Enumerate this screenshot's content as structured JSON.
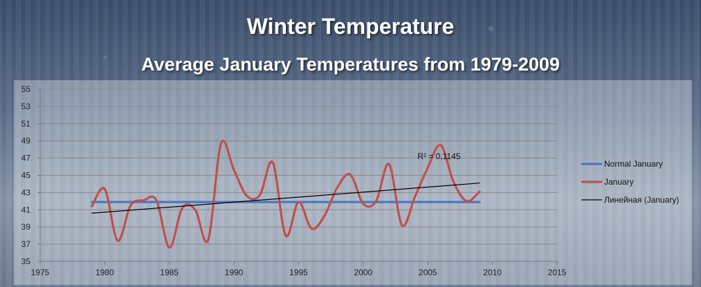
{
  "slide": {
    "title": "Winter Temperature",
    "subtitle": "Average January Temperatures from 1979-2009"
  },
  "chart_data": {
    "type": "line",
    "title": "",
    "xlabel": "",
    "ylabel": "",
    "xlim": [
      1975,
      2015
    ],
    "ylim": [
      35,
      55
    ],
    "x_ticks": [
      "1975",
      "1980",
      "1985",
      "1990",
      "1995",
      "2000",
      "2005",
      "2010",
      "2015"
    ],
    "y_ticks": [
      "35",
      "37",
      "39",
      "41",
      "43",
      "45",
      "47",
      "49",
      "51",
      "53",
      "55"
    ],
    "grid": true,
    "legend_position": "right",
    "series": [
      {
        "name": "Normal January",
        "color": "#4a78c2",
        "x": [
          1979,
          2009
        ],
        "y": [
          41.9,
          41.9
        ]
      },
      {
        "name": "January",
        "color": "#c0504d",
        "smooth": true,
        "x": [
          1979,
          1980,
          1981,
          1982,
          1983,
          1984,
          1985,
          1986,
          1987,
          1988,
          1989,
          1990,
          1991,
          1992,
          1993,
          1994,
          1995,
          1996,
          1997,
          1998,
          1999,
          2000,
          2001,
          2002,
          2003,
          2004,
          2005,
          2006,
          2007,
          2008,
          2009
        ],
        "y": [
          41.4,
          43.4,
          37.4,
          41.5,
          42.1,
          42.1,
          36.6,
          41.2,
          41.0,
          37.5,
          48.7,
          45.6,
          42.6,
          42.7,
          46.5,
          38.0,
          41.9,
          38.8,
          40.3,
          43.6,
          45.1,
          41.7,
          42.0,
          46.3,
          39.2,
          42.5,
          45.9,
          48.5,
          44.2,
          42.0,
          43.1
        ]
      },
      {
        "name": "Линейная (January)",
        "color": "#000000",
        "x": [
          1979,
          2009
        ],
        "y": [
          40.6,
          44.1
        ]
      }
    ],
    "annotations": [
      {
        "text": "R² = 0,1145",
        "x": 2004.2,
        "y": 47.2
      }
    ]
  }
}
